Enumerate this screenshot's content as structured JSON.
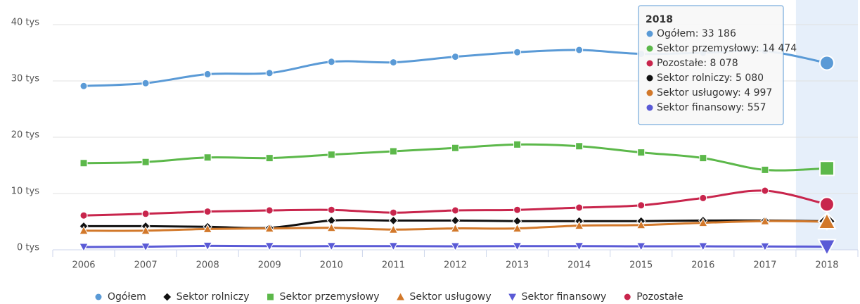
{
  "chart_data": {
    "type": "line",
    "categories": [
      "2006",
      "2007",
      "2008",
      "2009",
      "2010",
      "2011",
      "2012",
      "2013",
      "2014",
      "2015",
      "2016",
      "2017",
      "2018"
    ],
    "ylim": [
      0,
      40000
    ],
    "yticks": [
      {
        "value": 0,
        "label": "0 tys"
      },
      {
        "value": 10000,
        "label": "10 tys"
      },
      {
        "value": 20000,
        "label": "20 tys"
      },
      {
        "value": 30000,
        "label": "30 tys"
      },
      {
        "value": 40000,
        "label": "40 tys"
      }
    ],
    "grid": true,
    "legend": "bottom",
    "series": [
      {
        "name": "Ogółem",
        "color": "#5a9ad6",
        "marker": "circle",
        "values": [
          29100,
          29600,
          31200,
          31400,
          33400,
          33300,
          34300,
          35100,
          35500,
          34800,
          35000,
          35300,
          33186
        ]
      },
      {
        "name": "Sektor rolniczy",
        "color": "#111111",
        "marker": "diamond",
        "values": [
          4200,
          4200,
          4100,
          3900,
          5200,
          5200,
          5200,
          5100,
          5100,
          5100,
          5200,
          5200,
          5080
        ]
      },
      {
        "name": "Sektor przemysłowy",
        "color": "#5cb84a",
        "marker": "square",
        "values": [
          15400,
          15600,
          16400,
          16300,
          16900,
          17500,
          18100,
          18700,
          18400,
          17300,
          16300,
          14200,
          14474
        ]
      },
      {
        "name": "Sektor usługowy",
        "color": "#d2782a",
        "marker": "triangle",
        "values": [
          3400,
          3400,
          3700,
          3800,
          3900,
          3600,
          3800,
          3800,
          4300,
          4400,
          4800,
          5100,
          4997
        ]
      },
      {
        "name": "Sektor finansowy",
        "color": "#5a5ad6",
        "marker": "triangle-down",
        "values": [
          500,
          550,
          700,
          650,
          650,
          650,
          620,
          650,
          650,
          620,
          620,
          600,
          557
        ]
      },
      {
        "name": "Pozostałe",
        "color": "#c8254c",
        "marker": "circle",
        "values": [
          6100,
          6400,
          6800,
          7000,
          7100,
          6600,
          7000,
          7100,
          7500,
          7900,
          9200,
          10500,
          8078
        ]
      }
    ],
    "tooltip": {
      "title": "2018",
      "items": [
        "Ogółem: 33 186",
        "Sektor przemysłowy: 14 474",
        "Pozostałe: 8 078",
        "Sektor rolniczy: 5 080",
        "Sektor usługowy: 4 997",
        "Sektor finansowy: 557"
      ]
    }
  }
}
